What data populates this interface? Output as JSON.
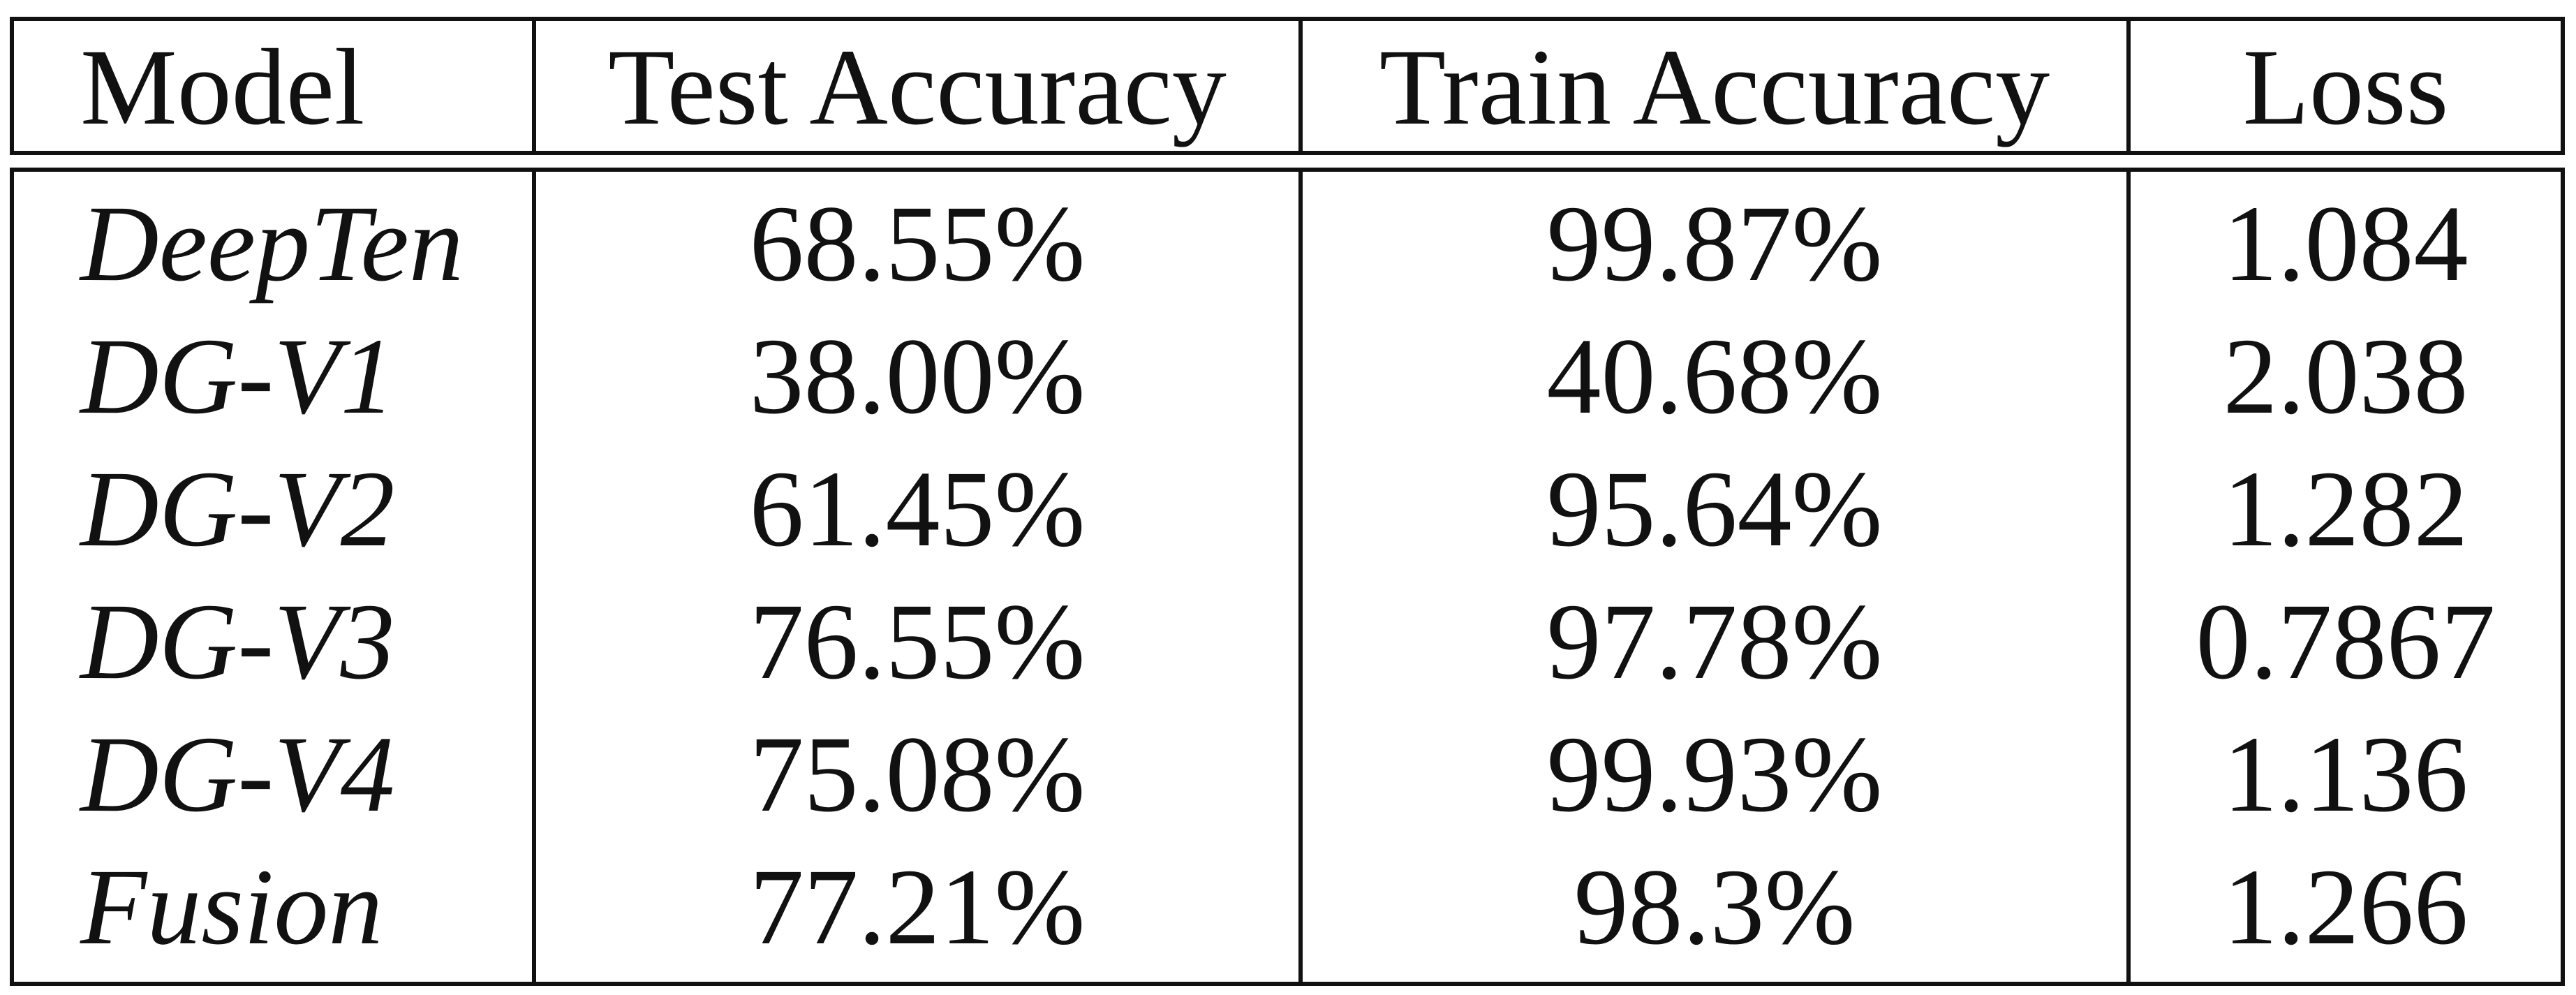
{
  "table": {
    "headers": [
      "Model",
      "Test Accuracy",
      "Train Accuracy",
      "Loss"
    ],
    "rows": [
      {
        "model": "DeepTen",
        "test_accuracy": "68.55%",
        "train_accuracy": "99.87%",
        "loss": "1.084"
      },
      {
        "model": "DG-V1",
        "test_accuracy": "38.00%",
        "train_accuracy": "40.68%",
        "loss": "2.038"
      },
      {
        "model": "DG-V2",
        "test_accuracy": "61.45%",
        "train_accuracy": "95.64%",
        "loss": "1.282"
      },
      {
        "model": "DG-V3",
        "test_accuracy": "76.55%",
        "train_accuracy": "97.78%",
        "loss": "0.7867"
      },
      {
        "model": "DG-V4",
        "test_accuracy": "75.08%",
        "train_accuracy": "99.93%",
        "loss": "1.136"
      },
      {
        "model": "Fusion",
        "test_accuracy": "77.21%",
        "train_accuracy": "98.3%",
        "loss": "1.266"
      }
    ]
  }
}
